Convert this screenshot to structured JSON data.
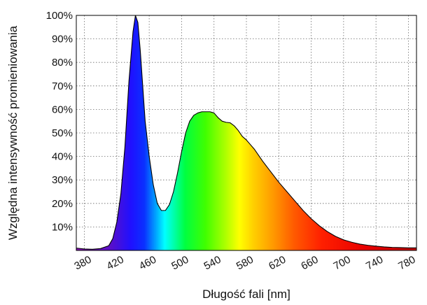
{
  "chart_data": {
    "type": "area",
    "title": "",
    "xlabel": "Długość fali [nm]",
    "ylabel": "Względna intensywność promieniowania",
    "xlim": [
      370,
      790
    ],
    "ylim": [
      0,
      100
    ],
    "x_ticks": [
      380,
      420,
      460,
      500,
      540,
      580,
      620,
      660,
      700,
      740,
      780
    ],
    "y_ticks": [
      10,
      20,
      30,
      40,
      50,
      60,
      70,
      80,
      90,
      100
    ],
    "y_tick_suffix": "%",
    "grid": true,
    "fill": "visible-spectrum-gradient",
    "series": [
      {
        "x": [
          370,
          380,
          390,
          400,
          410,
          415,
          420,
          425,
          430,
          435,
          440,
          443,
          446,
          449,
          452,
          455,
          460,
          465,
          470,
          475,
          480,
          485,
          490,
          495,
          500,
          505,
          510,
          515,
          520,
          525,
          530,
          535,
          540,
          545,
          550,
          555,
          560,
          565,
          570,
          575,
          580,
          585,
          590,
          600,
          610,
          620,
          630,
          640,
          650,
          660,
          670,
          680,
          690,
          700,
          710,
          720,
          730,
          740,
          750,
          760,
          770,
          780,
          790
        ],
        "values": [
          1,
          0.6,
          0.5,
          0.8,
          2,
          5,
          12,
          24,
          44,
          72,
          93,
          100,
          97,
          85,
          70,
          55,
          40,
          28,
          20,
          17,
          17,
          19.5,
          25,
          33,
          42,
          50,
          55,
          57.5,
          58.5,
          59,
          59,
          59,
          58.5,
          56.5,
          55,
          54.5,
          54.3,
          53,
          51,
          48.5,
          47,
          45,
          43,
          38,
          33.5,
          29,
          25,
          21,
          17,
          13.5,
          10.5,
          8,
          6,
          4.5,
          3.5,
          2.7,
          2.2,
          1.8,
          1.5,
          1.3,
          1.2,
          1.1,
          1.1
        ]
      }
    ]
  }
}
